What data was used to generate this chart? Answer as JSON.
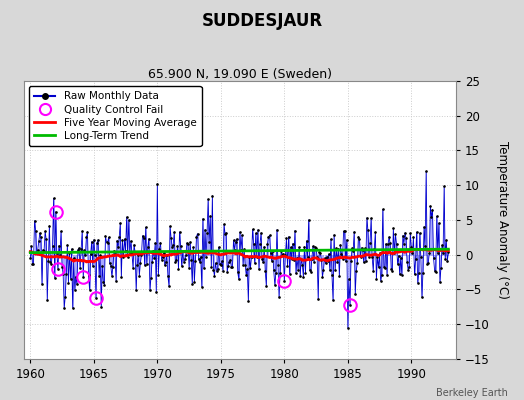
{
  "title": "SUDDESJAUR",
  "subtitle": "65.900 N, 19.090 E (Sweden)",
  "ylabel": "Temperature Anomaly (°C)",
  "credit": "Berkeley Earth",
  "xlim": [
    1959.5,
    1993.5
  ],
  "ylim": [
    -15,
    25
  ],
  "yticks": [
    -15,
    -10,
    -5,
    0,
    5,
    10,
    15,
    20,
    25
  ],
  "xticks": [
    1960,
    1965,
    1970,
    1975,
    1980,
    1985,
    1990
  ],
  "bg_color": "#d8d8d8",
  "plot_bg_color": "#ffffff",
  "raw_color": "#0000cc",
  "stem_color": "#6666ff",
  "ma_color": "#ff0000",
  "trend_color": "#00bb00",
  "qc_color": "#ff00ff",
  "seed": 12345,
  "n_months": 396,
  "start_year": 1960.0
}
